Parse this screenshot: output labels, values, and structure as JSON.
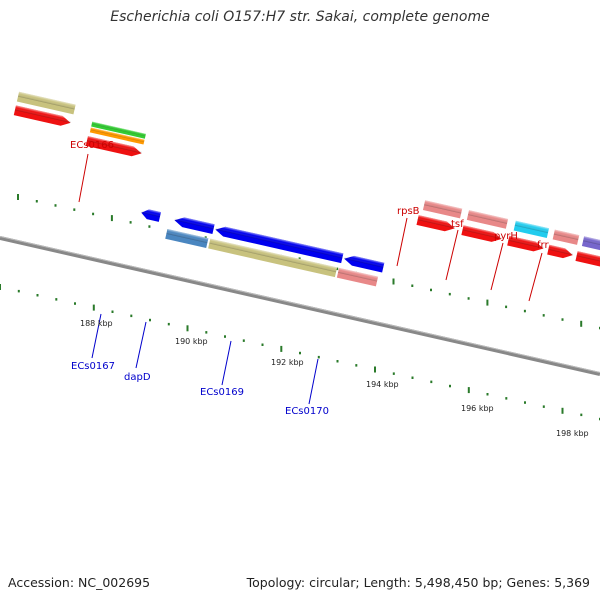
{
  "title": "Escherichia coli O157:H7 str. Sakai, complete genome",
  "footer": {
    "accession": "Accession: NC_002695",
    "summary": "Topology: circular; Length: 5,498,450 bp; Genes: 5,369"
  },
  "colors": {
    "forward_label": "#cc0000",
    "reverse_label": "#0000cc",
    "tick": "#2a7a2a",
    "backbone": "#8a8a8a"
  },
  "genes": {
    "top": [
      {
        "name": "ECs0166",
        "color": "#ffffff"
      },
      {
        "name": "rpsB",
        "color": "#e88888"
      },
      {
        "name": "tsf",
        "color": "#e88888"
      },
      {
        "name": "pyrH",
        "color": "#22ccee"
      },
      {
        "name": "frr",
        "color": "#e88888"
      }
    ],
    "bottom": [
      {
        "name": "ECs0167",
        "color": "#0000ee"
      },
      {
        "name": "dapD",
        "color": "#4a86c0"
      },
      {
        "name": "ECs0169",
        "color": "#c8c27e"
      },
      {
        "name": "ECs0170",
        "color": "#e88888"
      }
    ]
  },
  "kbp_labels": [
    "188 kbp",
    "190 kbp",
    "192 kbp",
    "194 kbp",
    "196 kbp",
    "198 kbp"
  ]
}
